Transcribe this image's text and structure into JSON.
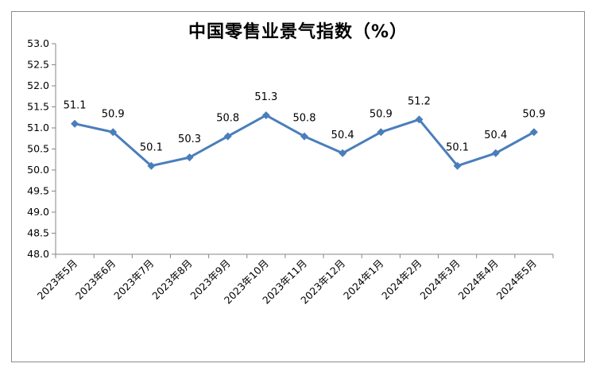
{
  "chart_data": {
    "type": "line",
    "title": "中国零售业景气指数（%）",
    "categories": [
      "2023年5月",
      "2023年6月",
      "2023年7月",
      "2023年8月",
      "2023年9月",
      "2023年10月",
      "2023年11月",
      "2023年12月",
      "2024年1月",
      "2024年2月",
      "2024年3月",
      "2024年4月",
      "2024年5月"
    ],
    "series": [
      {
        "values": [
          51.1,
          50.9,
          50.1,
          50.3,
          50.8,
          51.3,
          50.8,
          50.4,
          50.9,
          51.2,
          50.1,
          50.4,
          50.9
        ]
      }
    ],
    "yticks": [
      "48.0",
      "48.5",
      "49.0",
      "49.5",
      "50.0",
      "50.5",
      "51.0",
      "51.5",
      "52.0",
      "52.5",
      "53.0"
    ],
    "ylim": [
      48.0,
      53.0
    ],
    "grid": false,
    "legend": "none",
    "line_color": "#4a7ebb",
    "marker": "diamond"
  }
}
